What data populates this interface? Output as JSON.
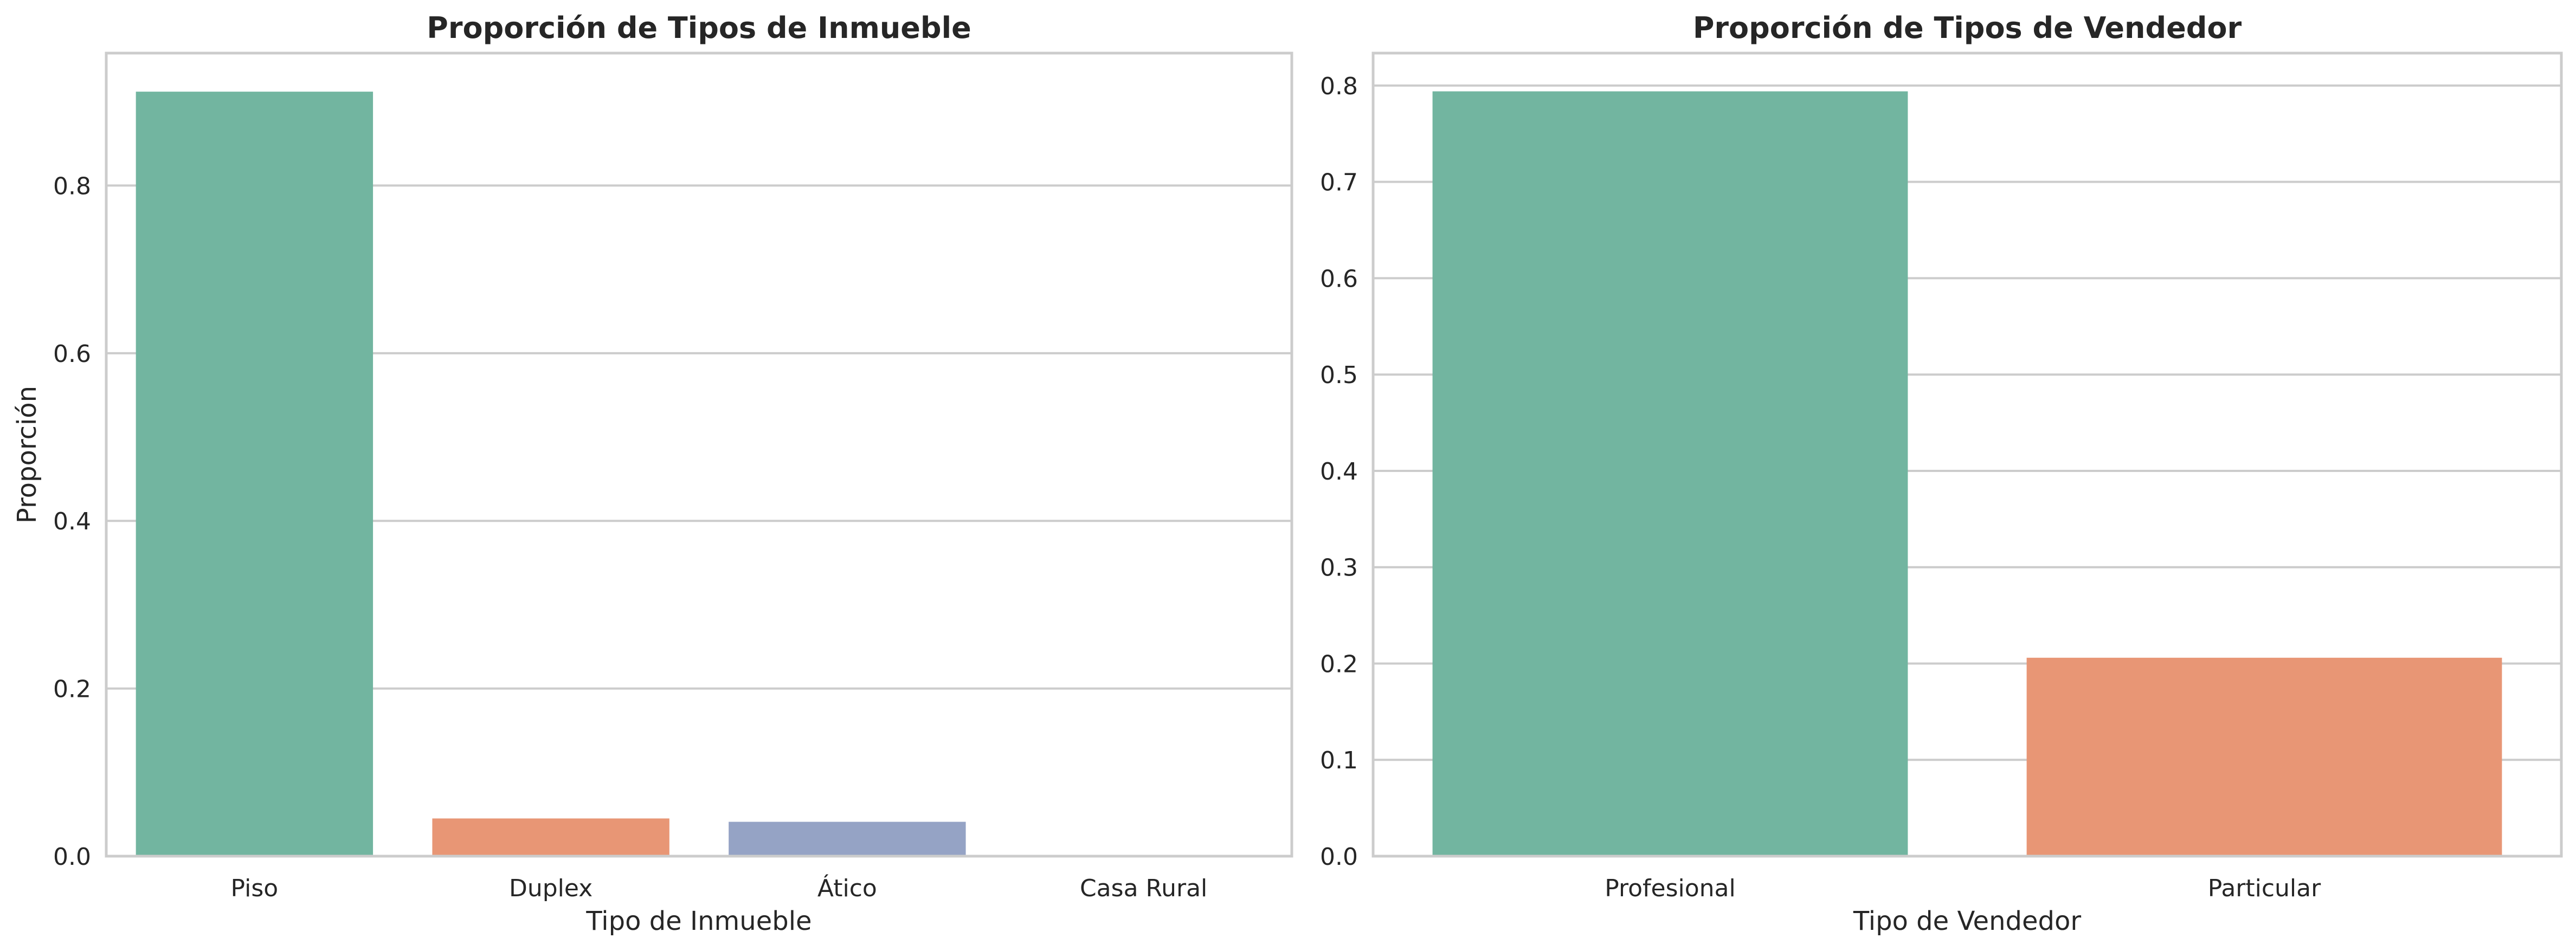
{
  "chart_data": [
    {
      "type": "bar",
      "title": "Proporción de Tipos de Inmueble",
      "xlabel": "Tipo de Inmueble",
      "ylabel": "Proporción",
      "categories": [
        "Piso",
        "Duplex",
        "Ático",
        "Casa Rural"
      ],
      "values": [
        0.912,
        0.045,
        0.041,
        0.001
      ],
      "colors": [
        "#72b5a0",
        "#e89675",
        "#95a3c5",
        "#e08fc0"
      ],
      "ylim": [
        0,
        0.958
      ],
      "yticks": [
        0.0,
        0.2,
        0.4,
        0.6,
        0.8
      ],
      "ytick_labels": [
        "0.0",
        "0.2",
        "0.4",
        "0.6",
        "0.8"
      ],
      "grid": "y"
    },
    {
      "type": "bar",
      "title": "Proporción de Tipos de Vendedor",
      "xlabel": "Tipo de Vendedor",
      "ylabel": "",
      "categories": [
        "Profesional",
        "Particular"
      ],
      "values": [
        0.794,
        0.206
      ],
      "colors": [
        "#72b5a0",
        "#e89675"
      ],
      "ylim": [
        0,
        0.8337
      ],
      "yticks": [
        0.0,
        0.1,
        0.2,
        0.3,
        0.4,
        0.5,
        0.6,
        0.7,
        0.8
      ],
      "ytick_labels": [
        "0.0",
        "0.1",
        "0.2",
        "0.3",
        "0.4",
        "0.5",
        "0.6",
        "0.7",
        "0.8"
      ],
      "grid": "y"
    }
  ],
  "style": {
    "grid_color": "#cccccc",
    "spine_color": "#cccccc",
    "text_color": "#262626",
    "background": "#ffffff"
  }
}
